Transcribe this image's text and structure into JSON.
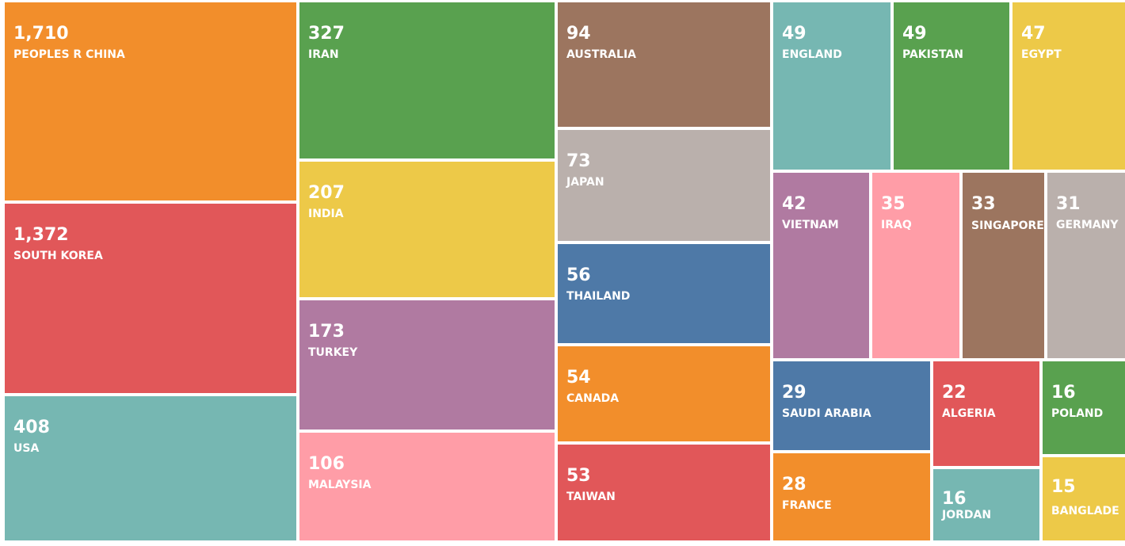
{
  "chart_data": {
    "type": "treemap",
    "cells": [
      {
        "label": "PEOPLES R CHINA",
        "display": "1,710",
        "value": 1710,
        "color": "#f28e2b"
      },
      {
        "label": "SOUTH KOREA",
        "display": "1,372",
        "value": 1372,
        "color": "#e15759"
      },
      {
        "label": "USA",
        "display": "408",
        "value": 408,
        "color": "#76b7b2"
      },
      {
        "label": "IRAN",
        "display": "327",
        "value": 327,
        "color": "#59a14f"
      },
      {
        "label": "INDIA",
        "display": "207",
        "value": 207,
        "color": "#edc948"
      },
      {
        "label": "TURKEY",
        "display": "173",
        "value": 173,
        "color": "#b07aa1"
      },
      {
        "label": "MALAYSIA",
        "display": "106",
        "value": 106,
        "color": "#ff9da7"
      },
      {
        "label": "AUSTRALIA",
        "display": "94",
        "value": 94,
        "color": "#9c755f"
      },
      {
        "label": "JAPAN",
        "display": "73",
        "value": 73,
        "color": "#bab0ac"
      },
      {
        "label": "THAILAND",
        "display": "56",
        "value": 56,
        "color": "#4e79a7"
      },
      {
        "label": "CANADA",
        "display": "54",
        "value": 54,
        "color": "#f28e2b"
      },
      {
        "label": "TAIWAN",
        "display": "53",
        "value": 53,
        "color": "#e15759"
      },
      {
        "label": "ENGLAND",
        "display": "49",
        "value": 49,
        "color": "#76b7b2"
      },
      {
        "label": "PAKISTAN",
        "display": "49",
        "value": 49,
        "color": "#59a14f"
      },
      {
        "label": "EGYPT",
        "display": "47",
        "value": 47,
        "color": "#edc948"
      },
      {
        "label": "VIETNAM",
        "display": "42",
        "value": 42,
        "color": "#b07aa1"
      },
      {
        "label": "IRAQ",
        "display": "35",
        "value": 35,
        "color": "#ff9da7"
      },
      {
        "label": "SINGAPORE",
        "display": "33",
        "value": 33,
        "color": "#9c755f"
      },
      {
        "label": "GERMANY",
        "display": "31",
        "value": 31,
        "color": "#bab0ac"
      },
      {
        "label": "SAUDI ARABIA",
        "display": "29",
        "value": 29,
        "color": "#4e79a7"
      },
      {
        "label": "ALGERIA",
        "display": "22",
        "value": 22,
        "color": "#e15759"
      },
      {
        "label": "POLAND",
        "display": "16",
        "value": 16,
        "color": "#59a14f"
      },
      {
        "label": "FRANCE",
        "display": "28",
        "value": 28,
        "color": "#f28e2b"
      },
      {
        "label": "JORDAN",
        "display": "16",
        "value": 16,
        "color": "#76b7b2"
      },
      {
        "label": "BANGLADE",
        "display": "15",
        "value": 15,
        "color": "#edc948"
      }
    ]
  }
}
